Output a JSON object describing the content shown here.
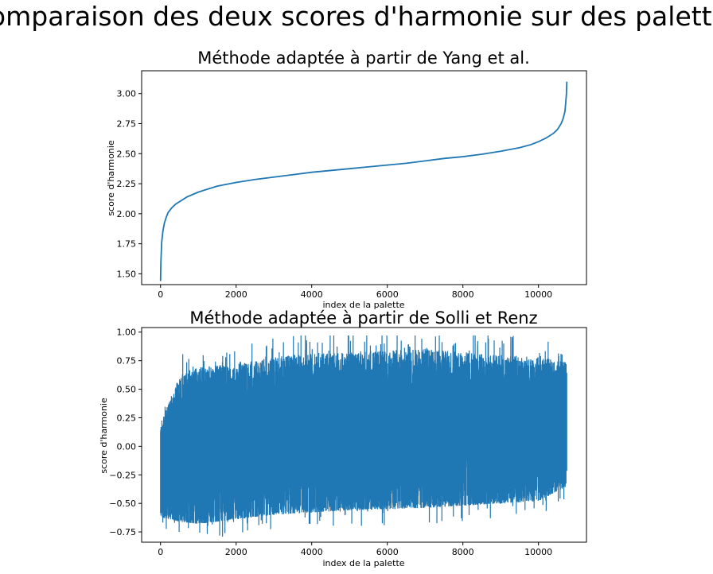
{
  "figure": {
    "title": "Comparaison des deux scores d'harmonie sur des palettes"
  },
  "chart_data": [
    {
      "type": "line",
      "title": "Méthode adaptée à partir de Yang et al.",
      "xlabel": "index de la palette",
      "ylabel": "score d'harmonie",
      "xlim": [
        -500,
        11270
      ],
      "ylim": [
        1.41,
        3.19
      ],
      "x_ticks": [
        0,
        2000,
        4000,
        6000,
        8000,
        10000
      ],
      "y_ticks": [
        1.5,
        1.75,
        2.0,
        2.25,
        2.5,
        2.75,
        3.0
      ],
      "x_tick_labels": [
        "0",
        "2000",
        "4000",
        "6000",
        "8000",
        "10000"
      ],
      "y_tick_labels": [
        "1.50",
        "1.75",
        "2.00",
        "2.25",
        "2.50",
        "2.75",
        "3.00"
      ],
      "color": "#1f77b4",
      "series": [
        {
          "x": [
            0,
            10,
            30,
            60,
            100,
            150,
            200,
            300,
            400,
            500,
            700,
            1000,
            1500,
            2000,
            2500,
            3000,
            3500,
            4000,
            4500,
            5000,
            5500,
            6000,
            6500,
            7000,
            7500,
            8000,
            8500,
            9000,
            9500,
            9800,
            10000,
            10200,
            10400,
            10500,
            10600,
            10650,
            10700,
            10720,
            10740,
            10750
          ],
          "values": [
            1.44,
            1.6,
            1.76,
            1.85,
            1.92,
            1.97,
            2.01,
            2.05,
            2.08,
            2.1,
            2.14,
            2.18,
            2.23,
            2.26,
            2.285,
            2.305,
            2.325,
            2.345,
            2.36,
            2.375,
            2.39,
            2.405,
            2.42,
            2.44,
            2.46,
            2.475,
            2.495,
            2.52,
            2.55,
            2.575,
            2.6,
            2.63,
            2.67,
            2.7,
            2.75,
            2.79,
            2.85,
            2.92,
            3.0,
            3.1
          ]
        }
      ]
    },
    {
      "type": "line",
      "title": "Méthode adaptée à partir de Solli et Renz",
      "xlabel": "index de la palette",
      "ylabel": "score d'harmonie",
      "xlim": [
        -500,
        11270
      ],
      "ylim": [
        -0.84,
        1.04
      ],
      "x_ticks": [
        0,
        2000,
        4000,
        6000,
        8000,
        10000
      ],
      "y_ticks": [
        -0.75,
        -0.5,
        -0.25,
        0.0,
        0.25,
        0.5,
        0.75,
        1.0
      ],
      "x_tick_labels": [
        "0",
        "2000",
        "4000",
        "6000",
        "8000",
        "10000"
      ],
      "y_tick_labels": [
        "−0.75",
        "−0.50",
        "−0.25",
        "0.00",
        "0.25",
        "0.50",
        "0.75",
        "1.00"
      ],
      "color": "#1f77b4",
      "n_points": 10750,
      "envelope": {
        "x": [
          0,
          500,
          1000,
          2000,
          3000,
          4000,
          5000,
          6000,
          7000,
          8000,
          9000,
          10000,
          10750
        ],
        "upper": [
          0.2,
          0.62,
          0.7,
          0.72,
          0.78,
          0.82,
          0.83,
          0.84,
          0.86,
          0.82,
          0.8,
          0.78,
          0.74
        ],
        "lower": [
          -0.62,
          -0.66,
          -0.68,
          -0.64,
          -0.6,
          -0.58,
          -0.56,
          -0.55,
          -0.54,
          -0.52,
          -0.5,
          -0.48,
          -0.35
        ],
        "peak_max": 0.97,
        "peak_min": -0.83
      }
    }
  ]
}
